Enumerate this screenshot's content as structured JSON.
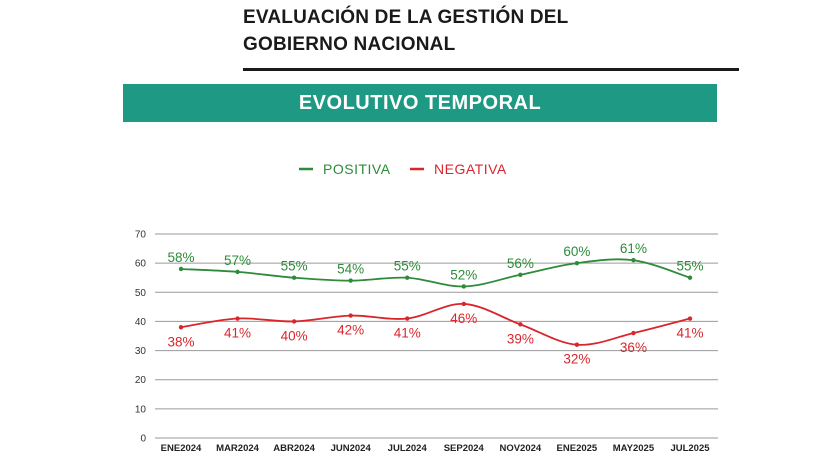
{
  "header": {
    "title_line1": "EVALUACIÓN DE LA GESTIÓN DEL",
    "title_line2": "GOBIERNO NACIONAL",
    "banner": "EVOLUTIVO TEMPORAL"
  },
  "colors": {
    "positive": "#2e8b3a",
    "negative": "#d9262c",
    "banner": "#1e9a84",
    "grid": "#9a9a9a"
  },
  "chart_data": {
    "type": "line",
    "categories": [
      "ENE2024",
      "MAR2024",
      "ABR2024",
      "JUN2024",
      "JUL2024",
      "SEP2024",
      "NOV2024",
      "ENE2025",
      "MAY2025",
      "JUL2025"
    ],
    "series": [
      {
        "name": "POSITIVA",
        "values": [
          58,
          57,
          55,
          54,
          55,
          52,
          56,
          60,
          61,
          55
        ],
        "labels": [
          "58%",
          "57%",
          "55%",
          "54%",
          "55%",
          "52%",
          "56%",
          "60%",
          "61%",
          "55%"
        ]
      },
      {
        "name": "NEGATIVA",
        "values": [
          38,
          41,
          40,
          42,
          41,
          46,
          39,
          32,
          36,
          41
        ],
        "labels": [
          "38%",
          "41%",
          "40%",
          "42%",
          "41%",
          "46%",
          "39%",
          "32%",
          "36%",
          "41%"
        ]
      }
    ],
    "yticks": [
      "0",
      "10",
      "20",
      "30",
      "40",
      "50",
      "60",
      "70"
    ],
    "ylim": [
      0,
      70
    ],
    "legend_position": "top-center",
    "grid": "horizontal"
  }
}
